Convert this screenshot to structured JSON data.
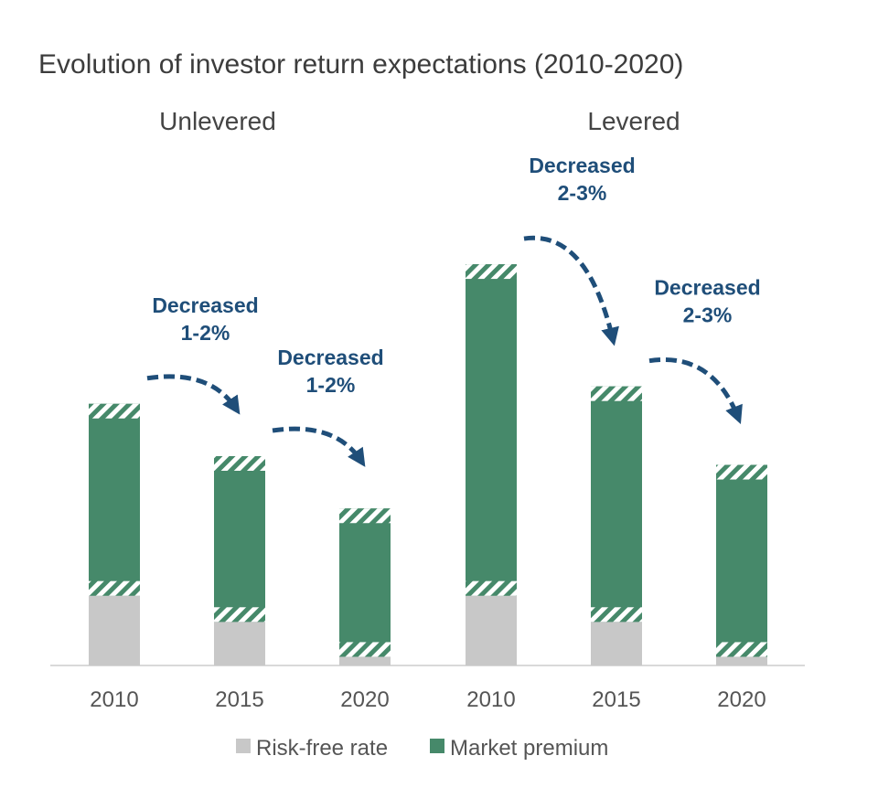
{
  "chart_data": {
    "type": "bar",
    "stacked": true,
    "title": "Evolution of investor return expectations (2010-2020)",
    "groups": [
      {
        "name": "Unlevered",
        "categories": [
          "2010",
          "2015",
          "2020"
        ],
        "values_risk_free": [
          4.0,
          2.5,
          0.5
        ],
        "values_market_premium": [
          11.0,
          9.5,
          8.5
        ],
        "annotations": [
          {
            "line1": "Decreased",
            "line2": "1-2%"
          },
          {
            "line1": "Decreased",
            "line2": "1-2%"
          }
        ]
      },
      {
        "name": "Levered",
        "categories": [
          "2010",
          "2015",
          "2020"
        ],
        "values_risk_free": [
          4.0,
          2.5,
          0.5
        ],
        "values_market_premium": [
          19.0,
          13.5,
          11.0
        ],
        "annotations": [
          {
            "line1": "Decreased",
            "line2": "2-3%"
          },
          {
            "line1": "Decreased",
            "line2": "2-3%"
          }
        ]
      }
    ],
    "series": [
      {
        "name": "Risk-free rate",
        "color": "#c8c8c8"
      },
      {
        "name": "Market premium",
        "color": "#46896a"
      }
    ],
    "legend_position": "bottom",
    "ylim": [
      0,
      24
    ],
    "grid": false
  }
}
